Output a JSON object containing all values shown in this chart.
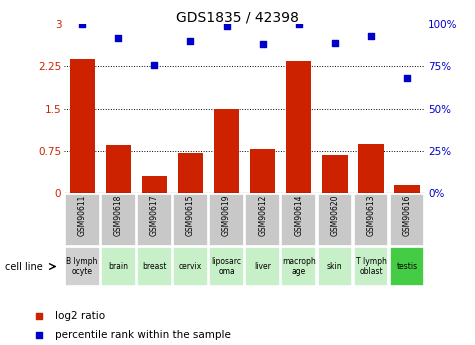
{
  "title": "GDS1835 / 42398",
  "gsm_labels": [
    "GSM90611",
    "GSM90618",
    "GSM90617",
    "GSM90615",
    "GSM90619",
    "GSM90612",
    "GSM90614",
    "GSM90620",
    "GSM90613",
    "GSM90616"
  ],
  "cell_lines": [
    "B lymph\nocyte",
    "brain",
    "breast",
    "cervix",
    "liposarc\noma",
    "liver",
    "macroph\nage",
    "skin",
    "T lymph\noblast",
    "testis"
  ],
  "log2_ratio": [
    2.38,
    0.85,
    0.3,
    0.72,
    1.5,
    0.78,
    2.35,
    0.68,
    0.88,
    0.15
  ],
  "percentile_rank": [
    100,
    92,
    76,
    90,
    99,
    88,
    100,
    89,
    93,
    68
  ],
  "bar_color": "#cc2200",
  "dot_color": "#0000cc",
  "ylim_left": [
    0,
    3
  ],
  "ylim_right": [
    0,
    100
  ],
  "yticks_left": [
    0,
    0.75,
    1.5,
    2.25,
    3
  ],
  "yticks_right": [
    0,
    25,
    50,
    75,
    100
  ],
  "ytick_labels_left": [
    "0",
    "0.75",
    "1.5",
    "2.25",
    "3"
  ],
  "ytick_labels_right": [
    "0%",
    "25%",
    "50%",
    "75%",
    "100%"
  ],
  "hlines": [
    0.75,
    1.5,
    2.25
  ],
  "gsm_bg_color": "#c8c8c8",
  "cell_colors": [
    "#d0d0d0",
    "#c8f0c8",
    "#c8f0c8",
    "#c8f0c8",
    "#c8f0c8",
    "#c8f0c8",
    "#c8f0c8",
    "#c8f0c8",
    "#c8f0c8",
    "#44cc44"
  ],
  "legend_bar_label": "log2 ratio",
  "legend_dot_label": "percentile rank within the sample",
  "cell_line_label": "cell line"
}
